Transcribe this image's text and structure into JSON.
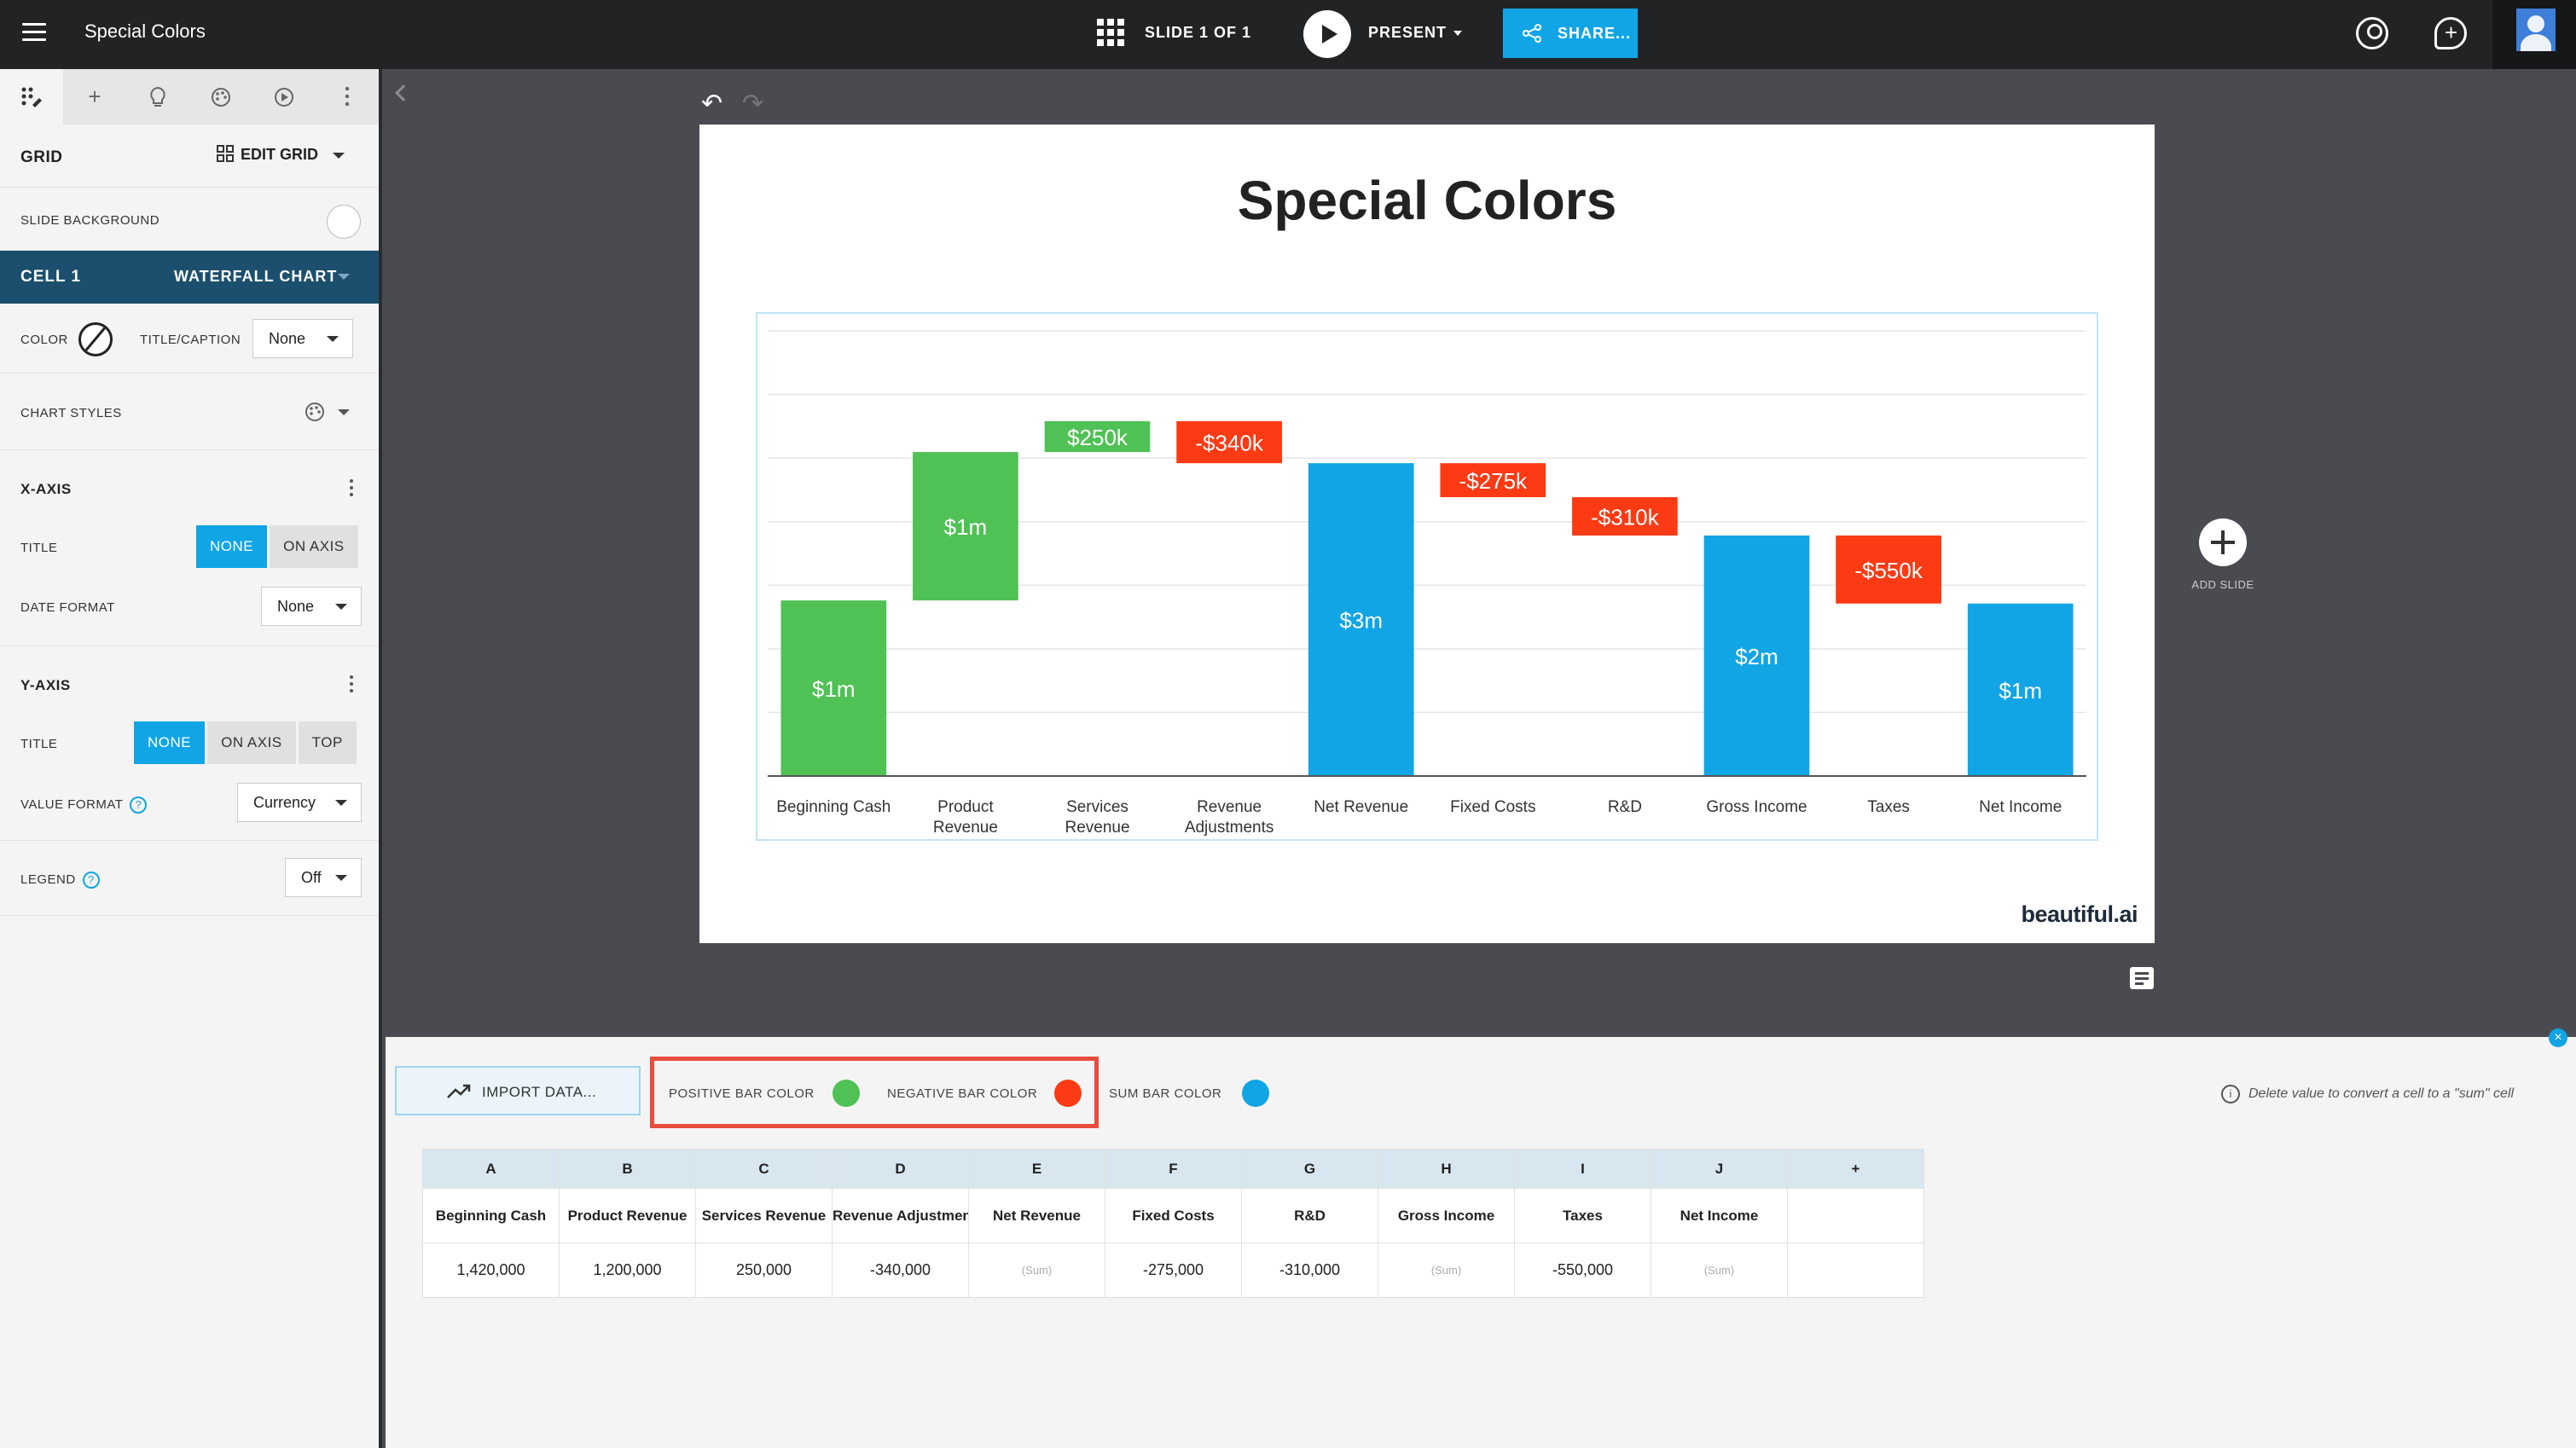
{
  "app": {
    "doc_title": "Special Colors",
    "slide_count": "SLIDE 1 OF 1",
    "present_label": "PRESENT",
    "share_label": "SHARE..."
  },
  "panel": {
    "grid_label": "GRID",
    "edit_grid_label": "EDIT GRID",
    "slide_background_label": "SLIDE BACKGROUND",
    "cell_label": "CELL 1",
    "cell_type": "WATERFALL CHART",
    "color_label": "COLOR",
    "title_caption_label": "TITLE/CAPTION",
    "title_caption_value": "None",
    "chart_styles_label": "CHART STYLES",
    "x_axis": {
      "header": "X-AXIS",
      "title_label": "TITLE",
      "title_options": [
        "NONE",
        "ON AXIS"
      ],
      "date_format_label": "DATE FORMAT",
      "date_format_value": "None"
    },
    "y_axis": {
      "header": "Y-AXIS",
      "title_label": "TITLE",
      "title_options": [
        "NONE",
        "ON AXIS",
        "TOP"
      ],
      "value_format_label": "VALUE FORMAT",
      "value_format_value": "Currency"
    },
    "legend_label": "LEGEND",
    "legend_value": "Off",
    "help_glyph": "?"
  },
  "slide": {
    "title": "Special Colors",
    "brand": "beautiful.ai",
    "add_slide_label": "ADD SLIDE"
  },
  "chart_data": {
    "type": "waterfall",
    "categories": [
      "Beginning Cash",
      "Product Revenue",
      "Services Revenue",
      "Revenue Adjustments",
      "Net Revenue",
      "Fixed Costs",
      "R&D",
      "Gross Income",
      "Taxes",
      "Net Income"
    ],
    "values": [
      1420000,
      1200000,
      250000,
      -340000,
      null,
      -275000,
      -310000,
      null,
      -550000,
      null
    ],
    "kinds": [
      "positive",
      "positive",
      "positive",
      "negative",
      "sum",
      "negative",
      "negative",
      "sum",
      "negative",
      "sum"
    ],
    "data_labels": [
      "$1m",
      "$1m",
      "$250k",
      "-$340k",
      "$3m",
      "-$275k",
      "-$310k",
      "$2m",
      "-$550k",
      "$1m"
    ],
    "colors": {
      "positive": "#50c155",
      "negative": "#fc3a14",
      "sum": "#11a5e6"
    },
    "ylim": [
      0,
      3600000
    ],
    "grid": true,
    "legend": "off"
  },
  "data_panel": {
    "import_label": "IMPORT DATA...",
    "positive_label": "POSITIVE BAR COLOR",
    "negative_label": "NEGATIVE BAR COLOR",
    "sum_label": "SUM BAR COLOR",
    "hint": "Delete value to convert a cell to a \"sum\" cell",
    "info_glyph": "i",
    "close_glyph": "×",
    "columns": [
      "A",
      "B",
      "C",
      "D",
      "E",
      "F",
      "G",
      "H",
      "I",
      "J",
      "+"
    ],
    "headers": [
      "Beginning Cash",
      "Product Revenue",
      "Services Revenue",
      "Revenue Adjustment",
      "Net Revenue",
      "Fixed Costs",
      "R&D",
      "Gross Income",
      "Taxes",
      "Net Income",
      ""
    ],
    "values": [
      "1,420,000",
      "1,200,000",
      "250,000",
      "-340,000",
      "(Sum)",
      "-275,000",
      "-310,000",
      "(Sum)",
      "-550,000",
      "(Sum)",
      ""
    ]
  }
}
